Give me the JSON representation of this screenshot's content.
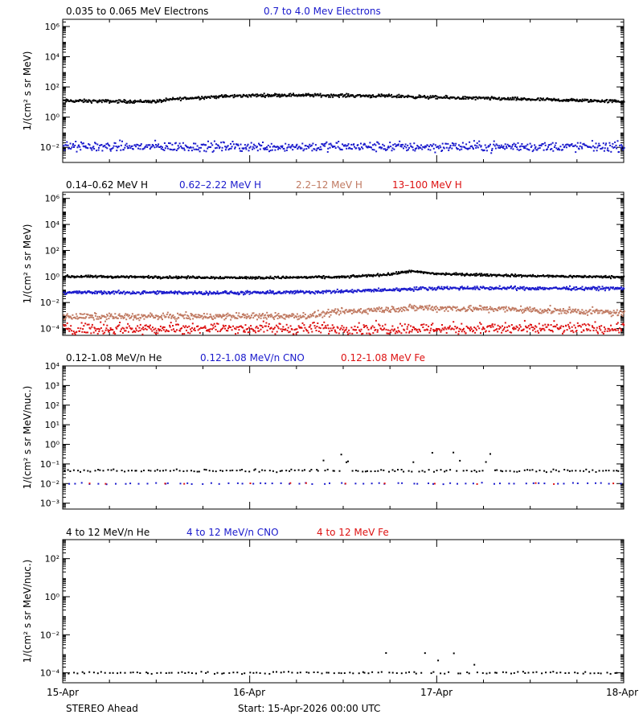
{
  "colors": {
    "black": "#000000",
    "blue": "#1a1acc",
    "tan": "#c07a62",
    "red": "#dd1111"
  },
  "footer": {
    "left": "STEREO Ahead",
    "start": "Start: 15-Apr-2026 00:00 UTC"
  },
  "x_axis": {
    "ticks": [
      "15-Apr",
      "16-Apr",
      "17-Apr",
      "18-Apr"
    ],
    "range": [
      0,
      3
    ],
    "units": "days"
  },
  "chart_data": [
    {
      "type": "scatter",
      "scale": "log",
      "ylabel": "1/(cm² s sr MeV)",
      "ylim": [
        0.001,
        3000000
      ],
      "yticks": [
        {
          "v": 0.01,
          "t": "10⁻²"
        },
        {
          "v": 1,
          "t": "10⁰"
        },
        {
          "v": 100,
          "t": "10²"
        },
        {
          "v": 10000,
          "t": "10⁴"
        },
        {
          "v": 1000000,
          "t": "10⁶"
        }
      ],
      "series": [
        {
          "name": "0.035 to 0.065 MeV Electrons",
          "color": "black",
          "points": [
            [
              0,
              12
            ],
            [
              0.3,
              11
            ],
            [
              0.5,
              11
            ],
            [
              0.6,
              16
            ],
            [
              0.8,
              22
            ],
            [
              1.0,
              27
            ],
            [
              1.2,
              29
            ],
            [
              1.5,
              27
            ],
            [
              1.8,
              24
            ],
            [
              2.0,
              20
            ],
            [
              2.3,
              17
            ],
            [
              2.6,
              14
            ],
            [
              3.0,
              11
            ]
          ],
          "noise": 0.08,
          "density": 800
        },
        {
          "name": "0.7 to 4.0 Mev Electrons",
          "color": "blue",
          "points": [
            [
              0,
              0.011
            ],
            [
              3,
              0.011
            ]
          ],
          "noise": 0.25,
          "density": 700
        }
      ]
    },
    {
      "type": "scatter",
      "scale": "log",
      "ylabel": "1/(cm² s sr MeV)",
      "ylim": [
        3e-05,
        3000000
      ],
      "yticks": [
        {
          "v": 0.0001,
          "t": "10⁻⁴"
        },
        {
          "v": 0.01,
          "t": "10⁻²"
        },
        {
          "v": 1,
          "t": "10⁰"
        },
        {
          "v": 100,
          "t": "10²"
        },
        {
          "v": 10000,
          "t": "10⁴"
        },
        {
          "v": 1000000,
          "t": "10⁶"
        }
      ],
      "series": [
        {
          "name": "0.14–0.62 MeV H",
          "color": "black",
          "points": [
            [
              0,
              1.0
            ],
            [
              1.0,
              0.8
            ],
            [
              1.5,
              0.9
            ],
            [
              1.75,
              1.5
            ],
            [
              1.85,
              2.5
            ],
            [
              2.0,
              1.6
            ],
            [
              2.5,
              1.1
            ],
            [
              3.0,
              0.9
            ]
          ],
          "noise": 0.07,
          "density": 800
        },
        {
          "name": "0.62–2.22 MeV H",
          "color": "blue",
          "points": [
            [
              0,
              0.06
            ],
            [
              1.0,
              0.055
            ],
            [
              1.5,
              0.07
            ],
            [
              2.0,
              0.13
            ],
            [
              3.0,
              0.12
            ]
          ],
          "noise": 0.1,
          "density": 800
        },
        {
          "name": "2.2–12 MeV H",
          "color": "tan",
          "points": [
            [
              0,
              0.0008
            ],
            [
              1.3,
              0.0009
            ],
            [
              1.5,
              0.002
            ],
            [
              1.9,
              0.004
            ],
            [
              2.4,
              0.003
            ],
            [
              2.8,
              0.002
            ],
            [
              3.0,
              0.0015
            ]
          ],
          "noise": 0.2,
          "density": 800
        },
        {
          "name": "13–100 MeV H",
          "color": "red",
          "points": [
            [
              0,
              0.0001
            ],
            [
              3,
              0.0001
            ]
          ],
          "noise": 0.35,
          "density": 700
        }
      ]
    },
    {
      "type": "scatter",
      "scale": "log",
      "ylabel": "1/(cm² s sr MeV/nuc.)",
      "ylim": [
        0.0005,
        10000
      ],
      "yticks": [
        {
          "v": 0.001,
          "t": "10⁻³"
        },
        {
          "v": 0.01,
          "t": "10⁻²"
        },
        {
          "v": 0.1,
          "t": "10⁻¹"
        },
        {
          "v": 1,
          "t": "10⁰"
        },
        {
          "v": 10,
          "t": "10¹"
        },
        {
          "v": 100,
          "t": "10²"
        },
        {
          "v": 1000,
          "t": "10³"
        },
        {
          "v": 10000,
          "t": "10⁴"
        }
      ],
      "series": [
        {
          "name": "0.12-1.08 MeV/n He",
          "color": "black",
          "points": [
            [
              0,
              0.045
            ],
            [
              3,
              0.045
            ]
          ],
          "noise": 0.05,
          "density": 170,
          "burst": [
            1.35,
            2.3,
            0.12
          ]
        },
        {
          "name": "0.12-1.08 MeV/n CNO",
          "color": "blue",
          "points": [
            [
              0,
              0.01
            ],
            [
              3,
              0.01
            ]
          ],
          "noise": 0.03,
          "density": 70
        },
        {
          "name": "0.12-1.08 MeV Fe",
          "color": "red",
          "points": [
            [
              0,
              0.01
            ],
            [
              3,
              0.01
            ]
          ],
          "noise": 0.03,
          "density": 14
        }
      ]
    },
    {
      "type": "scatter",
      "scale": "log",
      "ylabel": "1/(cm² s sr MeV/nuc.)",
      "ylim": [
        3e-05,
        1000
      ],
      "yticks": [
        {
          "v": 0.0001,
          "t": "10⁻⁴"
        },
        {
          "v": 0.01,
          "t": "10⁻²"
        },
        {
          "v": 1,
          "t": "10⁰"
        },
        {
          "v": 100,
          "t": "10²"
        }
      ],
      "series": [
        {
          "name": "4 to 12 MeV/n He",
          "color": "black",
          "points": [
            [
              0,
              0.0001
            ],
            [
              3,
              0.0001
            ]
          ],
          "noise": 0.04,
          "density": 140,
          "burst": [
            1.4,
            2.2,
            0.00025
          ]
        },
        {
          "name": "4 to 12 MeV/n CNO",
          "color": "blue",
          "points": [],
          "noise": 0,
          "density": 0
        },
        {
          "name": "4 to 12 MeV Fe",
          "color": "red",
          "points": [],
          "noise": 0,
          "density": 0
        }
      ]
    }
  ]
}
